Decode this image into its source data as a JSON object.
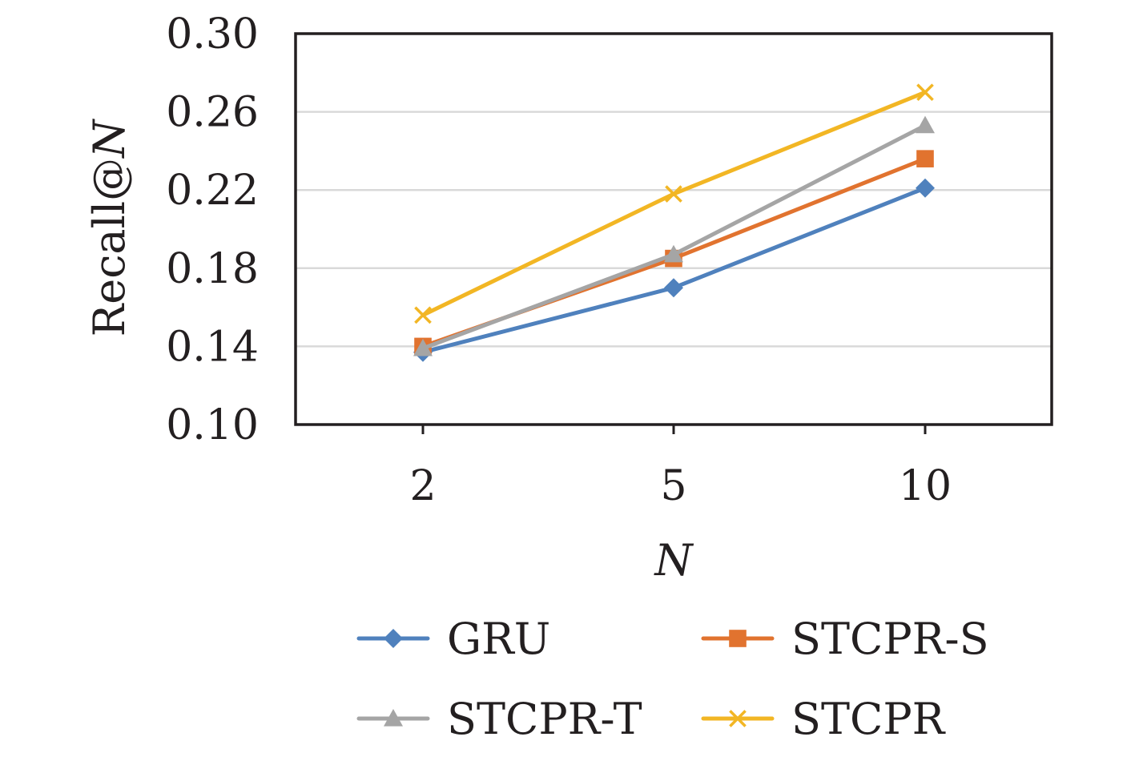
{
  "chart_data": {
    "type": "line",
    "title": "",
    "xlabel": "N",
    "ylabel_prefix": "Recall@",
    "ylabel_var": "N",
    "categories": [
      "2",
      "5",
      "10"
    ],
    "ylim": [
      0.1,
      0.3
    ],
    "yticks": [
      "0.10",
      "0.14",
      "0.18",
      "0.22",
      "0.26",
      "0.30"
    ],
    "grid": true,
    "legend_position": "bottom",
    "series": [
      {
        "name": "GRU",
        "values": [
          0.137,
          0.17,
          0.221
        ],
        "color": "#4f81bd",
        "marker": "diamond"
      },
      {
        "name": "STCPR-S",
        "values": [
          0.14,
          0.185,
          0.236
        ],
        "color": "#e1732f",
        "marker": "square"
      },
      {
        "name": "STCPR-T",
        "values": [
          0.139,
          0.187,
          0.253
        ],
        "color": "#a5a5a5",
        "marker": "triangle"
      },
      {
        "name": "STCPR",
        "values": [
          0.156,
          0.218,
          0.27
        ],
        "color": "#f2b624",
        "marker": "x"
      }
    ]
  }
}
